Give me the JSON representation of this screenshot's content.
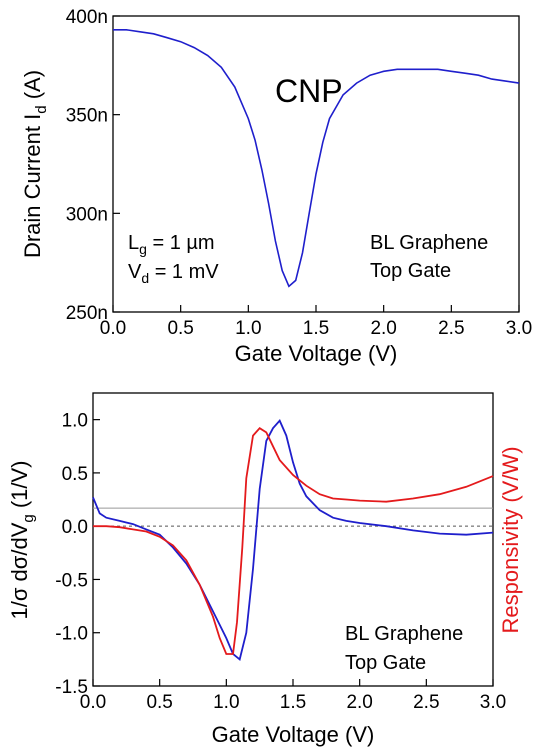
{
  "chart_data": [
    {
      "type": "line",
      "xlabel": "Gate Voltage (V)",
      "ylabel": "Drain Current I",
      "ylabel_sub": "d",
      "ylabel_unit": " (A)",
      "xlim": [
        0,
        3
      ],
      "ylim": [
        250,
        400
      ],
      "x_ticks": [
        0,
        0.5,
        1,
        1.5,
        2,
        2.5,
        3
      ],
      "x_tick_labels": [
        "0.0",
        "0.5",
        "1.0",
        "1.5",
        "2.0",
        "2.5",
        "3.0"
      ],
      "y_ticks": [
        250,
        300,
        350,
        400
      ],
      "y_tick_labels": [
        "250n",
        "300n",
        "350n",
        "400n"
      ],
      "annotations": {
        "peak": "CNP",
        "lg_main": "L",
        "lg_sub": "g",
        "lg_rest": " = 1 µm",
        "vd_main": "V",
        "vd_sub": "d",
        "vd_rest": " = 1 mV",
        "device_1": "BL Graphene",
        "device_2": "Top Gate"
      },
      "series": [
        {
          "color": "#1f1fcc",
          "x": [
            0,
            0.1,
            0.2,
            0.3,
            0.4,
            0.5,
            0.6,
            0.7,
            0.8,
            0.9,
            1.0,
            1.05,
            1.1,
            1.15,
            1.2,
            1.25,
            1.3,
            1.35,
            1.4,
            1.45,
            1.5,
            1.55,
            1.6,
            1.7,
            1.8,
            1.9,
            2.0,
            2.1,
            2.2,
            2.3,
            2.4,
            2.5,
            2.6,
            2.7,
            2.8,
            2.9,
            3.0
          ],
          "y": [
            393,
            393,
            392,
            391,
            389,
            387,
            384,
            380,
            374,
            364,
            348,
            337,
            322,
            305,
            286,
            271,
            263,
            266,
            280,
            300,
            320,
            336,
            348,
            360,
            366,
            370,
            372,
            373,
            373,
            373,
            373,
            372,
            371,
            370,
            368,
            367,
            366
          ]
        }
      ]
    },
    {
      "type": "line",
      "xlabel": "Gate Voltage (V)",
      "ylabel": "1/σ dσ/dV",
      "ylabel_sub": "g",
      "ylabel_unit": " (1/V)",
      "ylabel_right": "Responsivity (V/W)",
      "xlim": [
        0,
        3
      ],
      "ylim": [
        -1.5,
        1.25
      ],
      "x_ticks": [
        0,
        0.5,
        1,
        1.5,
        2,
        2.5,
        3
      ],
      "x_tick_labels": [
        "0.0",
        "0.5",
        "1.0",
        "1.5",
        "2.0",
        "2.5",
        "3.0"
      ],
      "y_ticks": [
        -1.5,
        -1.0,
        -0.5,
        0,
        0.5,
        1.0
      ],
      "y_tick_labels": [
        "-1.5",
        "-1.0",
        "-0.5",
        "0.0",
        "0.5",
        "1.0"
      ],
      "reference_lines": [
        0,
        0.17
      ],
      "annotations": {
        "device_1": "BL Graphene",
        "device_2": "Top Gate"
      },
      "series": [
        {
          "color": "#1f1fcc",
          "x": [
            0,
            0.05,
            0.1,
            0.2,
            0.3,
            0.4,
            0.5,
            0.6,
            0.7,
            0.8,
            0.9,
            1.0,
            1.05,
            1.1,
            1.15,
            1.2,
            1.25,
            1.3,
            1.35,
            1.4,
            1.45,
            1.5,
            1.55,
            1.6,
            1.7,
            1.8,
            1.9,
            2.0,
            2.2,
            2.4,
            2.6,
            2.8,
            3.0
          ],
          "y": [
            0.27,
            0.12,
            0.08,
            0.05,
            0.02,
            -0.03,
            -0.08,
            -0.2,
            -0.35,
            -0.55,
            -0.8,
            -1.05,
            -1.2,
            -1.25,
            -1.0,
            -0.4,
            0.35,
            0.8,
            0.92,
            0.99,
            0.85,
            0.6,
            0.4,
            0.28,
            0.15,
            0.08,
            0.05,
            0.03,
            0.0,
            -0.04,
            -0.07,
            -0.08,
            -0.06
          ]
        },
        {
          "color": "#e41a1c",
          "x": [
            0,
            0.1,
            0.2,
            0.3,
            0.4,
            0.5,
            0.6,
            0.7,
            0.8,
            0.9,
            0.95,
            1.0,
            1.05,
            1.08,
            1.12,
            1.15,
            1.2,
            1.25,
            1.3,
            1.35,
            1.4,
            1.5,
            1.6,
            1.7,
            1.8,
            1.9,
            2.0,
            2.2,
            2.4,
            2.6,
            2.8,
            3.0
          ],
          "y": [
            0.0,
            0.0,
            -0.01,
            -0.03,
            -0.05,
            -0.1,
            -0.18,
            -0.32,
            -0.55,
            -0.85,
            -1.05,
            -1.2,
            -1.2,
            -0.9,
            -0.2,
            0.45,
            0.85,
            0.92,
            0.88,
            0.75,
            0.62,
            0.48,
            0.38,
            0.3,
            0.26,
            0.25,
            0.24,
            0.23,
            0.26,
            0.3,
            0.37,
            0.47
          ]
        }
      ]
    }
  ]
}
